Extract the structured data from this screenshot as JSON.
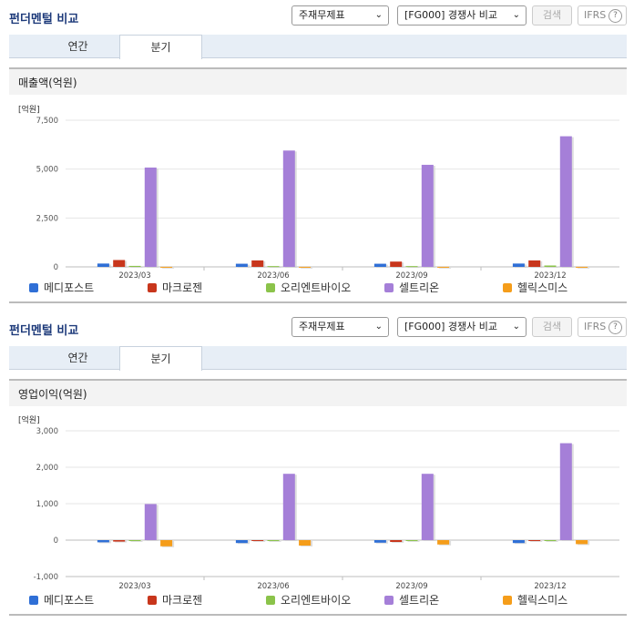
{
  "panels": [
    {
      "header": {
        "title": "펀더멘털 비교",
        "select1": "주재무제표",
        "select2": "[FG000] 경쟁사 비교",
        "search_label": "검색",
        "ifrs_label": "IFRS",
        "help_icon": "?"
      },
      "tabs": [
        {
          "label": "연간"
        },
        {
          "label": "분기"
        }
      ],
      "active_tab": 1,
      "metric_title": "매출액(억원)",
      "chart_data": {
        "type": "bar",
        "title": "매출액(억원)",
        "unit_label": "[억원]",
        "categories": [
          "2023/03",
          "2023/06",
          "2023/09",
          "2023/12"
        ],
        "ylim": [
          0,
          7500
        ],
        "yticks": [
          0,
          2500,
          5000,
          7500
        ],
        "ytick_labels": [
          "0",
          "2,500",
          "5,000",
          "7,500"
        ],
        "grid": true,
        "legend": "bottom",
        "series": [
          {
            "name": "메디포스트",
            "color": "#2f6fd6",
            "values": [
              170,
              160,
              160,
              170
            ]
          },
          {
            "name": "마크로젠",
            "color": "#c8361c",
            "values": [
              350,
              330,
              270,
              330
            ]
          },
          {
            "name": "오리엔트바이오",
            "color": "#8bc34a",
            "values": [
              50,
              40,
              40,
              70
            ]
          },
          {
            "name": "셀트리온",
            "color": "#a57fd8",
            "values": [
              5080,
              5950,
              5220,
              6680
            ]
          },
          {
            "name": "헬릭스미스",
            "color": "#f59d1a",
            "values": [
              3,
              3,
              3,
              3
            ]
          }
        ]
      }
    },
    {
      "header": {
        "title": "펀더멘털 비교",
        "select1": "주재무제표",
        "select2": "[FG000] 경쟁사 비교",
        "search_label": "검색",
        "ifrs_label": "IFRS",
        "help_icon": "?"
      },
      "tabs": [
        {
          "label": "연간"
        },
        {
          "label": "분기"
        }
      ],
      "active_tab": 1,
      "metric_title": "영업이익(억원)",
      "chart_data": {
        "type": "bar",
        "title": "영업이익(억원)",
        "unit_label": "[억원]",
        "categories": [
          "2023/03",
          "2023/06",
          "2023/09",
          "2023/12"
        ],
        "ylim": [
          -1000,
          3000
        ],
        "yticks": [
          -1000,
          0,
          1000,
          2000,
          3000
        ],
        "ytick_labels": [
          "-1,000",
          "0",
          "1,000",
          "2,000",
          "3,000"
        ],
        "grid": true,
        "legend": "bottom",
        "series": [
          {
            "name": "메디포스트",
            "color": "#2f6fd6",
            "values": [
              -60,
              -80,
              -70,
              -80
            ]
          },
          {
            "name": "마크로젠",
            "color": "#c8361c",
            "values": [
              -40,
              -10,
              -50,
              -10
            ]
          },
          {
            "name": "오리엔트바이오",
            "color": "#8bc34a",
            "values": [
              -10,
              -5,
              -5,
              -5
            ]
          },
          {
            "name": "셀트리온",
            "color": "#a57fd8",
            "values": [
              990,
              1820,
              1820,
              2660
            ]
          },
          {
            "name": "헬릭스미스",
            "color": "#f59d1a",
            "values": [
              -170,
              -150,
              -120,
              -110
            ]
          }
        ]
      }
    }
  ]
}
